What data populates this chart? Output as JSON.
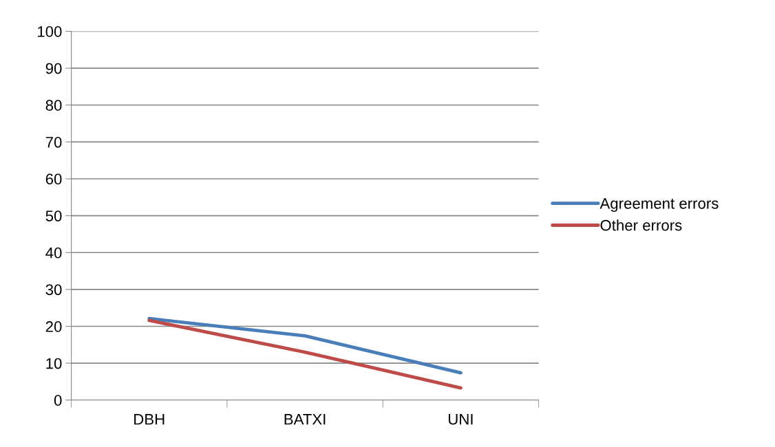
{
  "chart_data": {
    "type": "line",
    "categories": [
      "DBH",
      "BATXI",
      "UNI"
    ],
    "series": [
      {
        "name": "Agreement errors",
        "color": "#4a7ebb",
        "values": [
          22.1,
          17.4,
          7.4
        ]
      },
      {
        "name": "Other errors",
        "color": "#be4b48",
        "values": [
          21.6,
          13.0,
          3.3
        ]
      }
    ],
    "ylim": [
      0,
      100
    ],
    "yticks": [
      0,
      10,
      20,
      30,
      40,
      50,
      60,
      70,
      80,
      90,
      100
    ],
    "grid": "y",
    "legend": "right",
    "marker": "none"
  }
}
